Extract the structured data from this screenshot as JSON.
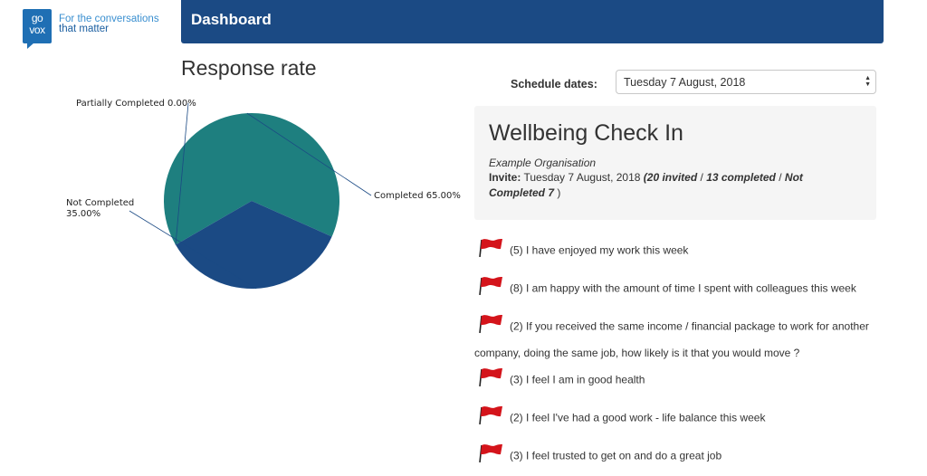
{
  "brand": {
    "logo_text_top": "go",
    "logo_text_bottom": "vox",
    "tagline_line1": "For the conversations",
    "tagline_line2": "that matter"
  },
  "header": {
    "title": "Dashboard"
  },
  "chart_section": {
    "title": "Response rate"
  },
  "chart_data": {
    "type": "pie",
    "slices": [
      {
        "label": "Completed 65.00%",
        "value": 65.0,
        "color": "#1e7f7f"
      },
      {
        "label": "Not Completed 35.00%",
        "value": 35.0,
        "color": "#1b4a84"
      },
      {
        "label": "Partially Completed 0.00%",
        "value": 0.0,
        "color": "#2e6e9e"
      }
    ]
  },
  "schedule": {
    "label": "Schedule dates:",
    "selected": "Tuesday 7 August, 2018"
  },
  "survey": {
    "title": "Wellbeing Check In",
    "organisation": "Example Organisation",
    "invite_label": "Invite:",
    "invite_date": "Tuesday 7 August, 2018",
    "invited": "(20 invited",
    "completed": "13 completed",
    "not_completed": "Not Completed 7",
    "sep": "/",
    "close_paren": ")"
  },
  "questions": [
    {
      "text": "(5) I have enjoyed my work this week"
    },
    {
      "text": "(8) I am happy with the amount of time I spent with colleagues this week"
    },
    {
      "text": "(2) If you received the same income / financial package to work for another",
      "text_cont": "company, doing the same job, how likely is it that you would move ?"
    },
    {
      "text": "(3) I feel I am in good health"
    },
    {
      "text": "(2) I feel I've had a good work - life balance this week"
    },
    {
      "text": "(3) I feel trusted to get on and do a great job"
    }
  ],
  "colors": {
    "header_bg": "#1b4a84",
    "flag": "#d4141b"
  }
}
